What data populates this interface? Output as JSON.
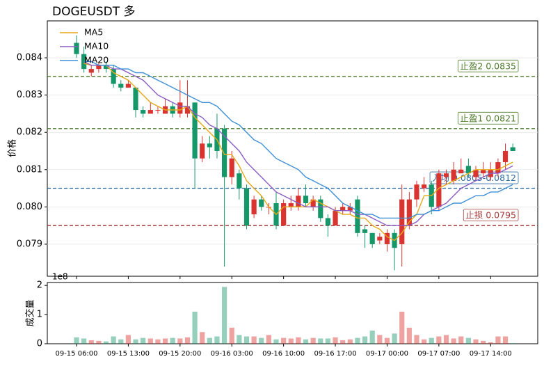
{
  "chart_data": {
    "type": "candlestick",
    "title": "DOGEUSDT  多",
    "ylabel": "价格",
    "volume_label": "成交量",
    "volume_offset": "1e8",
    "up_color": "#d9342f",
    "down_color": "#16976a",
    "grid": true,
    "legend": "upper left",
    "categories": [
      "09-15 06:00",
      "09-15 07:00",
      "09-15 08:00",
      "09-15 09:00",
      "09-15 10:00",
      "09-15 11:00",
      "09-15 12:00",
      "09-15 13:00",
      "09-15 14:00",
      "09-15 15:00",
      "09-15 16:00",
      "09-15 17:00",
      "09-15 18:00",
      "09-15 19:00",
      "09-15 20:00",
      "09-15 21:00",
      "09-15 22:00",
      "09-15 23:00",
      "09-16 00:00",
      "09-16 01:00",
      "09-16 02:00",
      "09-16 03:00",
      "09-16 04:00",
      "09-16 05:00",
      "09-16 06:00",
      "09-16 07:00",
      "09-16 08:00",
      "09-16 09:00",
      "09-16 10:00",
      "09-16 11:00",
      "09-16 12:00",
      "09-16 13:00",
      "09-16 14:00",
      "09-16 15:00",
      "09-16 16:00",
      "09-16 17:00",
      "09-16 18:00",
      "09-16 19:00",
      "09-16 20:00",
      "09-16 21:00",
      "09-16 22:00",
      "09-16 23:00",
      "09-17 00:00",
      "09-17 01:00",
      "09-17 02:00",
      "09-17 03:00",
      "09-17 04:00",
      "09-17 05:00",
      "09-17 06:00",
      "09-17 07:00",
      "09-17 08:00",
      "09-17 09:00",
      "09-17 10:00",
      "09-17 11:00",
      "09-17 12:00",
      "09-17 13:00",
      "09-17 14:00",
      "09-17 15:00",
      "09-17 16:00",
      "09-17 17:00"
    ],
    "xticks": [
      "09-15 06:00",
      "09-15 13:00",
      "09-15 20:00",
      "09-16 03:00",
      "09-16 10:00",
      "09-16 17:00",
      "09-17 00:00",
      "09-17 07:00",
      "09-17 14:00"
    ],
    "open": [
      0.0844,
      0.0841,
      0.0836,
      0.0837,
      0.0838,
      0.0837,
      0.0833,
      0.0832,
      0.0832,
      0.0826,
      0.0825,
      0.0826,
      0.0825,
      0.0827,
      0.0825,
      0.0825,
      0.0828,
      0.0813,
      0.0817,
      0.0821,
      0.0821,
      0.0808,
      0.0809,
      0.0805,
      0.0798,
      0.0802,
      0.08,
      0.0801,
      0.0795,
      0.08,
      0.08,
      0.0803,
      0.08,
      0.0802,
      0.0797,
      0.0795,
      0.0799,
      0.0799,
      0.0802,
      0.0794,
      0.0793,
      0.0791,
      0.079,
      0.0793,
      0.079,
      0.0795,
      0.0802,
      0.0805,
      0.0806,
      0.08,
      0.0808,
      0.0807,
      0.0809,
      0.0811,
      0.0808,
      0.0809,
      0.0808,
      0.0809,
      0.0812,
      0.0816
    ],
    "high": [
      0.0846,
      0.0843,
      0.0838,
      0.0839,
      0.0839,
      0.0838,
      0.0834,
      0.0834,
      0.0832,
      0.0827,
      0.0828,
      0.0827,
      0.0829,
      0.0828,
      0.0834,
      0.0834,
      0.0828,
      0.0819,
      0.0819,
      0.0825,
      0.0822,
      0.0815,
      0.081,
      0.0806,
      0.0803,
      0.0803,
      0.0801,
      0.0804,
      0.0802,
      0.0803,
      0.0805,
      0.0806,
      0.0803,
      0.0803,
      0.0798,
      0.08,
      0.0801,
      0.0801,
      0.0803,
      0.0795,
      0.0793,
      0.0793,
      0.0794,
      0.0794,
      0.0806,
      0.0804,
      0.0807,
      0.0808,
      0.0807,
      0.081,
      0.081,
      0.0812,
      0.0813,
      0.0813,
      0.0811,
      0.0812,
      0.0812,
      0.0813,
      0.0817,
      0.0817
    ],
    "low": [
      0.084,
      0.0836,
      0.0835,
      0.0836,
      0.0836,
      0.0832,
      0.0831,
      0.0832,
      0.0824,
      0.0824,
      0.0825,
      0.0825,
      0.0825,
      0.0824,
      0.0824,
      0.0824,
      0.0805,
      0.0812,
      0.0813,
      0.0813,
      0.0784,
      0.0806,
      0.0802,
      0.0794,
      0.0797,
      0.0799,
      0.0798,
      0.0794,
      0.0795,
      0.0799,
      0.0799,
      0.08,
      0.0799,
      0.0796,
      0.0792,
      0.0795,
      0.0798,
      0.0798,
      0.0792,
      0.0789,
      0.0789,
      0.079,
      0.0788,
      0.0783,
      0.0784,
      0.0794,
      0.08,
      0.0804,
      0.0798,
      0.0799,
      0.0806,
      0.0806,
      0.0809,
      0.0808,
      0.0807,
      0.0808,
      0.0807,
      0.0808,
      0.081,
      0.0815
    ],
    "close": [
      0.0841,
      0.0837,
      0.0837,
      0.0838,
      0.0837,
      0.0833,
      0.0832,
      0.0833,
      0.0826,
      0.0825,
      0.0826,
      0.0826,
      0.0827,
      0.0825,
      0.0828,
      0.0827,
      0.0813,
      0.0817,
      0.0816,
      0.0815,
      0.0808,
      0.0813,
      0.0805,
      0.0795,
      0.0802,
      0.08,
      0.08,
      0.0795,
      0.0801,
      0.0801,
      0.0803,
      0.0801,
      0.0802,
      0.0797,
      0.0795,
      0.0799,
      0.08,
      0.08,
      0.0793,
      0.0793,
      0.079,
      0.0792,
      0.0793,
      0.0789,
      0.0802,
      0.0802,
      0.0806,
      0.0806,
      0.08,
      0.0809,
      0.0809,
      0.081,
      0.081,
      0.0809,
      0.081,
      0.081,
      0.081,
      0.0812,
      0.0815,
      0.0815
    ],
    "series": [
      {
        "name": "MA5",
        "color": "#e6a817",
        "values": [
          null,
          0.08385,
          0.0838,
          0.0838,
          0.0838,
          0.0836,
          0.0835,
          0.0834,
          0.0832,
          0.083,
          0.0828,
          0.0827,
          0.0826,
          0.0826,
          0.0826,
          0.0827,
          0.0824,
          0.0822,
          0.082,
          0.0818,
          0.0814,
          0.0814,
          0.0811,
          0.0807,
          0.0805,
          0.0803,
          0.08,
          0.0798,
          0.08,
          0.08,
          0.08,
          0.08,
          0.0802,
          0.0801,
          0.08,
          0.0799,
          0.0798,
          0.0798,
          0.0797,
          0.0797,
          0.0795,
          0.0794,
          0.0792,
          0.0791,
          0.0793,
          0.0796,
          0.0798,
          0.0803,
          0.0803,
          0.0805,
          0.0806,
          0.0807,
          0.0808,
          0.0809,
          0.081,
          0.081,
          0.081,
          0.081,
          0.0811,
          0.0812
        ]
      },
      {
        "name": "MA10",
        "color": "#8a5cc2",
        "values": [
          null,
          0.0839,
          0.0838,
          0.0838,
          0.0838,
          0.0837,
          0.0837,
          0.0836,
          0.0835,
          0.0834,
          0.0832,
          0.083,
          0.0829,
          0.0828,
          0.0827,
          0.0827,
          0.0825,
          0.0824,
          0.0822,
          0.0821,
          0.0819,
          0.0817,
          0.0815,
          0.0812,
          0.081,
          0.0808,
          0.0806,
          0.0804,
          0.0803,
          0.0802,
          0.0801,
          0.08,
          0.08,
          0.08,
          0.08,
          0.0799,
          0.0799,
          0.0799,
          0.0798,
          0.0798,
          0.0797,
          0.0796,
          0.0795,
          0.0795,
          0.0795,
          0.0795,
          0.0796,
          0.0798,
          0.0799,
          0.08,
          0.0801,
          0.0803,
          0.0805,
          0.0806,
          0.0807,
          0.0808,
          0.0809,
          0.0809,
          0.081,
          0.0811
        ]
      },
      {
        "name": "MA20",
        "color": "#3d8fd6",
        "values": [
          null,
          0.0839,
          0.0839,
          0.0838,
          0.0838,
          0.0838,
          0.0837,
          0.0837,
          0.0836,
          0.0836,
          0.0835,
          0.0834,
          0.0833,
          0.0832,
          0.0831,
          0.083,
          0.0829,
          0.0828,
          0.0828,
          0.0827,
          0.0825,
          0.0823,
          0.0822,
          0.082,
          0.0818,
          0.0817,
          0.0815,
          0.0813,
          0.0812,
          0.0811,
          0.081,
          0.0808,
          0.0807,
          0.0806,
          0.0805,
          0.0803,
          0.0801,
          0.08,
          0.0799,
          0.0798,
          0.0798,
          0.0797,
          0.0797,
          0.0797,
          0.0797,
          0.0797,
          0.0798,
          0.0798,
          0.0799,
          0.0799,
          0.08,
          0.0801,
          0.0801,
          0.0802,
          0.0803,
          0.0803,
          0.0804,
          0.0804,
          0.0805,
          0.0806
        ]
      }
    ],
    "levels": [
      {
        "label": "止盈2 0.0835",
        "value": 0.0835,
        "color": "#4b7a29"
      },
      {
        "label": "止盈1 0.0821",
        "value": 0.0821,
        "color": "#4b7a29"
      },
      {
        "label": "入场 0.0805-0.0812",
        "value": 0.0805,
        "color": "#2f6ba3"
      },
      {
        "label": "止损 0.0795",
        "value": 0.0795,
        "color": "#a83a3a"
      }
    ],
    "ylim": [
      0.07814,
      0.08499
    ],
    "yticks": [
      0.079,
      {
        "value": 0.08,
        "label": "0.080"
      },
      0.081,
      0.082,
      0.083,
      0.084
    ],
    "volume": [
      0.22,
      0.18,
      0.12,
      0.1,
      0.08,
      0.25,
      0.15,
      0.3,
      0.15,
      0.2,
      0.18,
      0.15,
      0.18,
      0.2,
      0.18,
      0.22,
      1.1,
      0.4,
      0.2,
      0.25,
      1.95,
      0.55,
      0.3,
      0.25,
      0.25,
      0.2,
      0.3,
      0.15,
      0.2,
      0.18,
      0.22,
      0.15,
      0.2,
      0.18,
      0.18,
      0.22,
      0.12,
      0.15,
      0.2,
      0.25,
      0.45,
      0.3,
      0.2,
      0.35,
      1.1,
      0.55,
      0.3,
      0.15,
      0.2,
      0.25,
      0.3,
      0.18,
      0.25,
      0.2,
      0.15,
      0.1,
      0.05,
      0.25,
      0.25,
      0.02
    ],
    "vlim": [
      0,
      2.1
    ],
    "vticks": [
      0,
      1,
      2
    ]
  }
}
